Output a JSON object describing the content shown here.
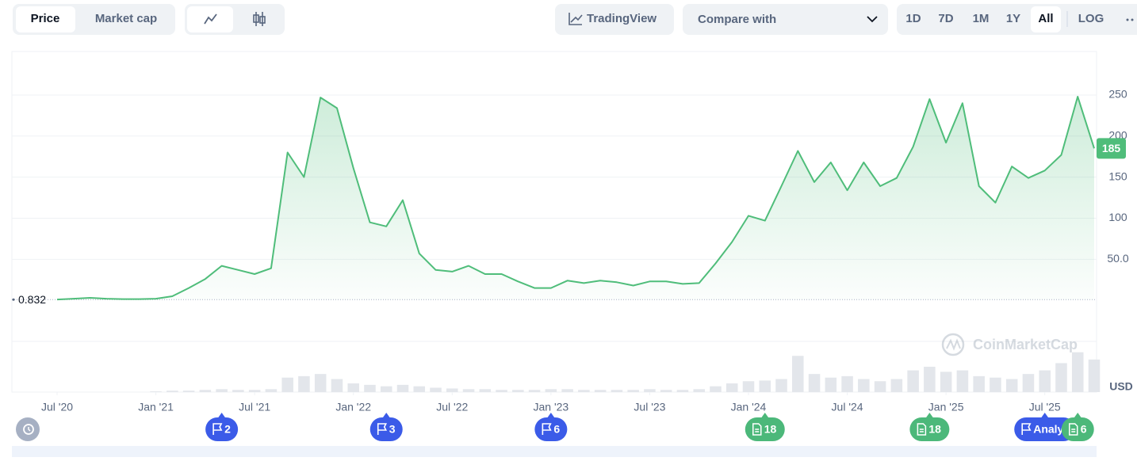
{
  "controls": {
    "views": [
      "Price",
      "Market cap"
    ],
    "tradingview": "TradingView",
    "compare": "Compare with",
    "ranges": [
      "1D",
      "7D",
      "1M",
      "1Y",
      "All"
    ],
    "log": "LOG"
  },
  "watermark": "CoinMarketCap",
  "currency": "USD",
  "chart_data": {
    "type": "line",
    "x": [
      "2020-07",
      "2020-08",
      "2020-09",
      "2020-10",
      "2020-11",
      "2020-12",
      "2021-01",
      "2021-02",
      "2021-03",
      "2021-04",
      "2021-05",
      "2021-06",
      "2021-07",
      "2021-08",
      "2021-09",
      "2021-10",
      "2021-11",
      "2021-12",
      "2022-01",
      "2022-02",
      "2022-03",
      "2022-04",
      "2022-05",
      "2022-06",
      "2022-07",
      "2022-08",
      "2022-09",
      "2022-10",
      "2022-11",
      "2022-12",
      "2023-01",
      "2023-02",
      "2023-03",
      "2023-04",
      "2023-05",
      "2023-06",
      "2023-07",
      "2023-08",
      "2023-09",
      "2023-10",
      "2023-11",
      "2023-12",
      "2024-01",
      "2024-02",
      "2024-03",
      "2024-04",
      "2024-05",
      "2024-06",
      "2024-07",
      "2024-08",
      "2024-09",
      "2024-10",
      "2024-11",
      "2024-12",
      "2025-01",
      "2025-02",
      "2025-03",
      "2025-04",
      "2025-05",
      "2025-06",
      "2025-07",
      "2025-08",
      "2025-09",
      "2025-10"
    ],
    "series": [
      {
        "name": "Price",
        "color": "#4fbd7a",
        "values": [
          1,
          2,
          3,
          2,
          1.5,
          1.5,
          2,
          5,
          15,
          26,
          42,
          37,
          32,
          39,
          180,
          150,
          247,
          234,
          161,
          95,
          90,
          122,
          57,
          37,
          35,
          42,
          32,
          32,
          23,
          15,
          15,
          24,
          21,
          24,
          22,
          18,
          23,
          23,
          20,
          21,
          45,
          71,
          103,
          97,
          139,
          182,
          144,
          168,
          134,
          168,
          139,
          149,
          187,
          245,
          192,
          240,
          139,
          119,
          163,
          149,
          158,
          177,
          248,
          185
        ]
      }
    ],
    "volume": {
      "color": "#e3e6eb",
      "values": [
        0,
        0,
        0,
        0,
        0,
        0,
        1,
        2,
        2,
        3,
        4,
        3,
        3,
        4,
        20,
        22,
        25,
        18,
        12,
        10,
        8,
        10,
        8,
        6,
        5,
        4,
        4,
        3,
        3,
        3,
        4,
        4,
        3,
        3,
        3,
        3,
        4,
        3,
        3,
        4,
        8,
        12,
        15,
        16,
        18,
        50,
        25,
        20,
        22,
        18,
        15,
        18,
        30,
        35,
        28,
        30,
        22,
        20,
        18,
        25,
        30,
        40,
        55,
        45
      ]
    },
    "vlim": [
      0,
      70
    ],
    "start_value": 0.832,
    "ylim": [
      -50,
      303
    ],
    "yticks": [
      {
        "value": 50,
        "label": "50.0"
      },
      100,
      150,
      200,
      250
    ],
    "xlim": [
      "2020-07",
      "2025-10"
    ],
    "xticks": [
      {
        "value": "2020-07",
        "label": "Jul '20"
      },
      {
        "value": "2021-01",
        "label": "Jan '21"
      },
      {
        "value": "2021-07",
        "label": "Jul '21"
      },
      {
        "value": "2022-01",
        "label": "Jan '22"
      },
      {
        "value": "2022-07",
        "label": "Jul '22"
      },
      {
        "value": "2023-01",
        "label": "Jan '23"
      },
      {
        "value": "2023-07",
        "label": "Jul '23"
      },
      {
        "value": "2024-01",
        "label": "Jan '24"
      },
      {
        "value": "2024-07",
        "label": "Jul '24"
      },
      {
        "value": "2025-01",
        "label": "Jan '25"
      },
      {
        "value": "2025-07",
        "label": "Jul '25"
      }
    ],
    "grid": true,
    "events": [
      {
        "x": "2021-05",
        "label": "2",
        "color": "#3b5be8"
      },
      {
        "x": "2022-03",
        "label": "3",
        "color": "#3b5be8"
      },
      {
        "x": "2023-01",
        "label": "6",
        "color": "#3b5be8"
      },
      {
        "x": "2024-02",
        "label": "18",
        "color": "#4cb87a"
      },
      {
        "x": "2024-12",
        "label": "18",
        "color": "#4cb87a"
      },
      {
        "x": "2025-07",
        "label": "Analy",
        "color": "#3b5be8"
      },
      {
        "x": "2025-09",
        "label": "6",
        "color": "#4cb87a"
      }
    ]
  }
}
